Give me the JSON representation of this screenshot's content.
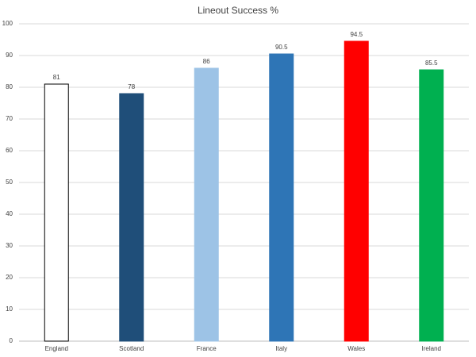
{
  "chart_data": {
    "type": "bar",
    "title": "Lineout Success %",
    "categories": [
      "England",
      "Scotland",
      "France",
      "Italy",
      "Wales",
      "Ireland"
    ],
    "values": [
      81,
      78,
      86,
      90.5,
      94.5,
      85.5
    ],
    "colors": [
      "#ffffff",
      "#1f4e79",
      "#9dc3e6",
      "#2e75b6",
      "#ff0000",
      "#00b050"
    ],
    "ylim": [
      0,
      100
    ],
    "yticks": [
      0,
      10,
      20,
      30,
      40,
      50,
      60,
      70,
      80,
      90,
      100
    ],
    "grid": true
  }
}
